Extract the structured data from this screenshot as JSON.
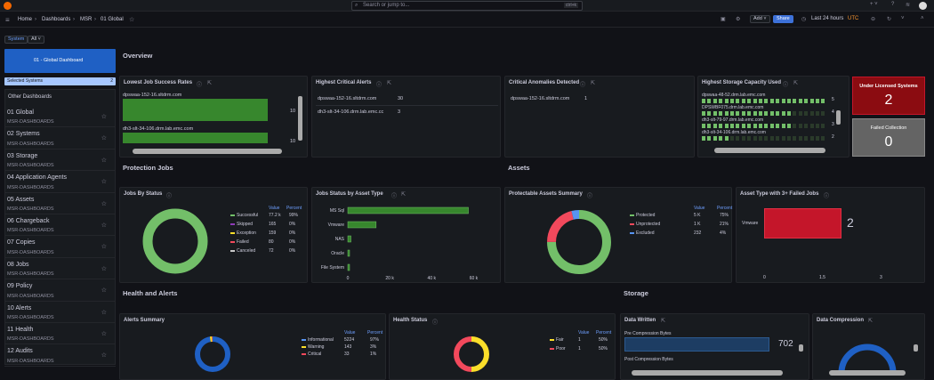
{
  "topbar": {
    "search_placeholder": "Search or jump to...",
    "search_shortcut": "ctrl+k"
  },
  "breadcrumb": [
    "Home",
    "Dashboards",
    "MSR",
    "01 Global"
  ],
  "toolbar": {
    "add_label": "Add",
    "share_label": "Share",
    "time_range": "Last 24 hours",
    "timezone": "UTC"
  },
  "vars": {
    "system_label": "System",
    "system_value": "All"
  },
  "sidebar": {
    "active_button": "01 - Global Dashboard",
    "selected_systems_label": "Selected Systems",
    "selected_systems_count": "2",
    "other_label": "Other Dashboards",
    "items": [
      {
        "title": "01 Global",
        "sub": "MSR-DASHBOARDS"
      },
      {
        "title": "02 Systems",
        "sub": "MSR-DASHBOARDS"
      },
      {
        "title": "03 Storage",
        "sub": "MSR-DASHBOARDS"
      },
      {
        "title": "04 Application Agents",
        "sub": "MSR-DASHBOARDS"
      },
      {
        "title": "05 Assets",
        "sub": "MSR-DASHBOARDS"
      },
      {
        "title": "06 Chargeback",
        "sub": "MSR-DASHBOARDS"
      },
      {
        "title": "07 Copies",
        "sub": "MSR-DASHBOARDS"
      },
      {
        "title": "08 Jobs",
        "sub": "MSR-DASHBOARDS"
      },
      {
        "title": "09 Policy",
        "sub": "MSR-DASHBOARDS"
      },
      {
        "title": "10 Alerts",
        "sub": "MSR-DASHBOARDS"
      },
      {
        "title": "11 Health",
        "sub": "MSR-DASHBOARDS"
      },
      {
        "title": "12 Audits",
        "sub": "MSR-DASHBOARDS"
      }
    ]
  },
  "sections": {
    "overview": "Overview",
    "protection": "Protection Jobs",
    "assets": "Assets",
    "health": "Health and Alerts",
    "storage": "Storage"
  },
  "p_lowest": {
    "title": "Lowest Job Success Rates",
    "row1": "dpswaa-152-16.sltdrm.com",
    "row2": "dh3-slt-34-106.drm.lab.emc.com",
    "v1": "10",
    "v2": "10",
    "fill": [
      1.0,
      1.0
    ]
  },
  "p_critical": {
    "title": "Highest Critical Alerts",
    "rows": [
      {
        "name": "dpswaa-152-16.sltdrm.com",
        "val": "30"
      },
      {
        "name": "dh3-slt-34-106.drm.lab.emc.cc",
        "val": "3"
      }
    ]
  },
  "p_anomalies": {
    "title": "Critical Anomalies Detected",
    "rows": [
      {
        "name": "dpswaa-152-16.sltdrm.com",
        "val": "1"
      }
    ]
  },
  "p_storage_cap": {
    "title": "Highest Storage Capacity Used",
    "rows": [
      {
        "name": "dpswaa-48-52.drm.lab.emc.com",
        "val": "5"
      },
      {
        "name": "DPSWBF075.drm.lab.emc.com",
        "val": "4"
      },
      {
        "name": "dh3-slt-79-97.drm.lab.emc.com",
        "val": "3"
      },
      {
        "name": "dh3-slt-34-106.drm.lab.emc.com",
        "val": "2"
      }
    ],
    "fill": [
      0.98,
      0.73,
      0.72,
      0.22
    ]
  },
  "stat_unlicensed": {
    "title": "Under Licensed Systems",
    "value": "2"
  },
  "stat_failed": {
    "title": "Failed Collection",
    "value": "0"
  },
  "p_jobs_status": {
    "title": "Jobs By Status",
    "head_value": "Value",
    "head_percent": "Percent",
    "rows": [
      {
        "name": "Successful",
        "value": "77.2 k",
        "pct": "99%",
        "color": "#73bf69"
      },
      {
        "name": "Skipped",
        "value": "165",
        "pct": "0%",
        "color": "#8f3bb8"
      },
      {
        "name": "Exception",
        "value": "159",
        "pct": "0%",
        "color": "#fade2a"
      },
      {
        "name": "Failed",
        "value": "80",
        "pct": "0%",
        "color": "#f2495c"
      },
      {
        "name": "Canceled",
        "value": "72",
        "pct": "0%",
        "color": "#c8c8c8"
      }
    ]
  },
  "p_jobs_asset": {
    "title": "Jobs Status by Asset Type",
    "categories": [
      "MS Sql",
      "Vmware",
      "NAS",
      "Oracle",
      "File System"
    ],
    "x_ticks": [
      "0",
      "20 k",
      "40 k",
      "60 k"
    ]
  },
  "chart_data": {
    "type": "bar",
    "title": "Jobs Status by Asset Type",
    "categories": [
      "MS Sql",
      "Vmware",
      "NAS",
      "Oracle",
      "File System"
    ],
    "values": [
      57500,
      13500,
      1500,
      800,
      200
    ],
    "xlim": [
      0,
      70000
    ],
    "x_ticks": [
      "0",
      "20 k",
      "40 k",
      "60 k"
    ],
    "orientation": "horizontal"
  },
  "p_protectable": {
    "title": "Protectable Assets Summary",
    "head_value": "Value",
    "head_percent": "Percent",
    "rows": [
      {
        "name": "Protected",
        "value": "5 K",
        "pct": "75%",
        "color": "#73bf69"
      },
      {
        "name": "Unprotected",
        "value": "1 K",
        "pct": "21%",
        "color": "#f2495c"
      },
      {
        "name": "Excluded",
        "value": "232",
        "pct": "4%",
        "color": "#5794f2"
      }
    ]
  },
  "p_failed_asset": {
    "title": "Asset Type with 3+ Failed Jobs",
    "category": "Vmware",
    "value": "2",
    "ticks": [
      "0",
      "1.5",
      "3"
    ]
  },
  "p_alerts": {
    "title": "Alerts Summary",
    "head_value": "Value",
    "head_percent": "Percent",
    "rows": [
      {
        "name": "Informational",
        "value": "5224",
        "pct": "97%",
        "color": "#5794f2"
      },
      {
        "name": "Warning",
        "value": "143",
        "pct": "3%",
        "color": "#fade2a"
      },
      {
        "name": "Critical",
        "value": "33",
        "pct": "1%",
        "color": "#f2495c"
      }
    ]
  },
  "p_health": {
    "title": "Health Status",
    "head_value": "Value",
    "head_percent": "Percent",
    "rows": [
      {
        "name": "Fair",
        "value": "1",
        "pct": "50%",
        "color": "#fade2a"
      },
      {
        "name": "Poor",
        "value": "1",
        "pct": "50%",
        "color": "#f2495c"
      }
    ]
  },
  "p_data_written": {
    "title": "Data Written",
    "pre": "Pre Compression Bytes",
    "pre_val": "702",
    "post": "Post Compression Bytes"
  },
  "p_compression": {
    "title": "Data Compression"
  }
}
